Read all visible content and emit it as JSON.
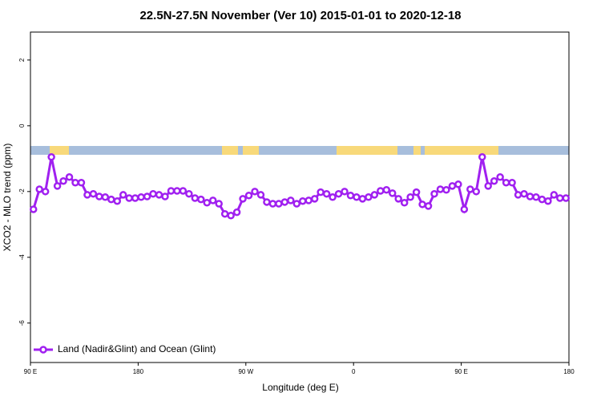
{
  "chart_data": {
    "type": "line",
    "title": "22.5N-27.5N November (Ver 10)   2015-01-01 to 2020-12-18",
    "x_label": "Longitude (deg E)",
    "y_label": "XCO2 - MLO trend (ppm)",
    "xlim": [
      90,
      540
    ],
    "xticks": [
      {
        "value": 90,
        "label": "90 E"
      },
      {
        "value": 180,
        "label": "180"
      },
      {
        "value": 270,
        "label": "90 W"
      },
      {
        "value": 360,
        "label": "0"
      },
      {
        "value": 450,
        "label": "90 E"
      },
      {
        "value": 540,
        "label": "180"
      }
    ],
    "ylim": [
      -7.2,
      2.85
    ],
    "yticks": [
      -6,
      -4,
      -2,
      0,
      2
    ],
    "legend": "bottom-left",
    "x": [
      92.5,
      97.5,
      102.5,
      107.5,
      112.5,
      117.5,
      122.5,
      127.5,
      132.5,
      137.5,
      142.5,
      147.5,
      152.5,
      157.5,
      162.5,
      167.5,
      172.5,
      177.5,
      182.5,
      187.5,
      192.5,
      197.5,
      202.5,
      207.5,
      212.5,
      217.5,
      222.5,
      227.5,
      232.5,
      237.5,
      242.5,
      247.5,
      252.5,
      257.5,
      262.5,
      267.5,
      272.5,
      277.5,
      282.5,
      287.5,
      292.5,
      297.5,
      302.5,
      307.5,
      312.5,
      317.5,
      322.5,
      327.5,
      332.5,
      337.5,
      342.5,
      347.5,
      352.5,
      357.5,
      362.5,
      367.5,
      372.5,
      377.5,
      382.5,
      387.5,
      392.5,
      397.5,
      402.5,
      407.5,
      412.5,
      417.5,
      422.5,
      427.5,
      432.5,
      437.5,
      442.5,
      447.5,
      452.5,
      457.5,
      462.5,
      467.5,
      472.5,
      477.5,
      482.5,
      487.5,
      492.5,
      497.5,
      502.5,
      507.5,
      512.5,
      517.5,
      522.5,
      527.5,
      532.5,
      537.5
    ],
    "series": [
      {
        "name": "Land (Nadir&Glint) and Ocean (Glint)",
        "color": "#a020f0",
        "values": [
          -2.54,
          -1.93,
          -2.0,
          -0.95,
          -1.83,
          -1.68,
          -1.56,
          -1.73,
          -1.73,
          -2.1,
          -2.07,
          -2.15,
          -2.17,
          -2.24,
          -2.29,
          -2.1,
          -2.2,
          -2.2,
          -2.17,
          -2.15,
          -2.07,
          -2.1,
          -2.15,
          -1.98,
          -1.98,
          -1.98,
          -2.07,
          -2.2,
          -2.24,
          -2.34,
          -2.27,
          -2.37,
          -2.68,
          -2.73,
          -2.63,
          -2.22,
          -2.12,
          -2.0,
          -2.1,
          -2.32,
          -2.37,
          -2.37,
          -2.32,
          -2.27,
          -2.37,
          -2.29,
          -2.27,
          -2.22,
          -2.02,
          -2.07,
          -2.17,
          -2.07,
          -2.0,
          -2.12,
          -2.17,
          -2.22,
          -2.17,
          -2.1,
          -1.98,
          -1.95,
          -2.05,
          -2.22,
          -2.34,
          -2.17,
          -2.02,
          -2.39,
          -2.44,
          -2.07,
          -1.93,
          -1.95,
          -1.83,
          -1.78,
          -2.54,
          -1.93,
          -2.0,
          -0.95,
          -1.83,
          -1.68,
          -1.56,
          -1.73,
          -1.73,
          -2.1,
          -2.07,
          -2.15,
          -2.17,
          -2.24,
          -2.29,
          -2.1,
          -2.2,
          -2.2
        ]
      }
    ]
  }
}
